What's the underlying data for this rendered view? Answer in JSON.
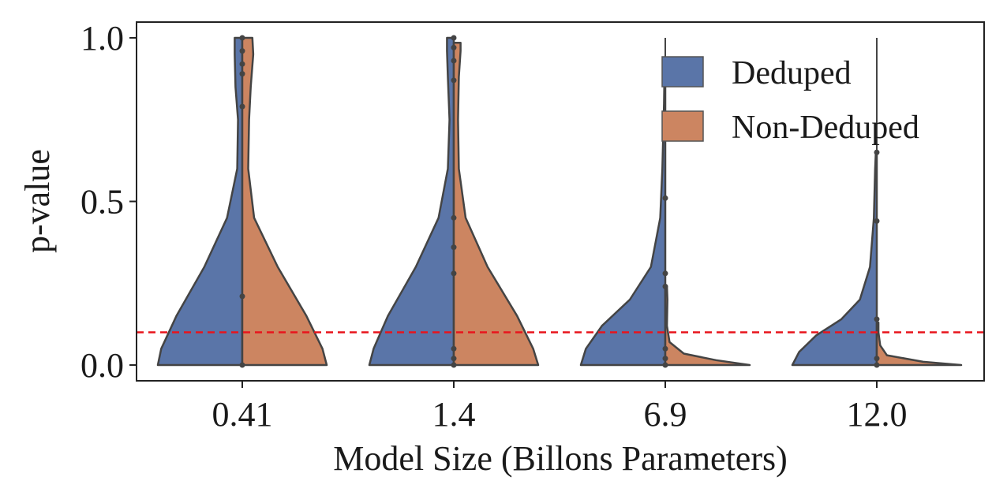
{
  "chart_data": {
    "type": "violin",
    "xlabel": "Model Size (Billons Parameters)",
    "ylabel": "p-value",
    "categories": [
      "0.41",
      "1.4",
      "6.9",
      "12.0"
    ],
    "yticks": [
      "0.0",
      "0.5",
      "1.0"
    ],
    "ylim": [
      -0.05,
      1.05
    ],
    "grid": false,
    "legend_position": "top-right",
    "threshold": {
      "value": 0.1,
      "color": "#e8141c",
      "style": "dashed"
    },
    "series": [
      {
        "name": "Deduped",
        "color": "#5a75a8",
        "side": "left",
        "distributions": [
          {
            "profile": [
              [
                0.0,
                1.0
              ],
              [
                0.05,
                0.96
              ],
              [
                0.15,
                0.78
              ],
              [
                0.3,
                0.45
              ],
              [
                0.45,
                0.18
              ],
              [
                0.6,
                0.06
              ],
              [
                0.75,
                0.05
              ],
              [
                0.85,
                0.08
              ],
              [
                0.95,
                0.09
              ],
              [
                1.0,
                0.09
              ]
            ],
            "points": [
              0.0,
              0.21,
              0.79,
              0.89,
              0.92,
              0.96,
              1.0
            ]
          },
          {
            "profile": [
              [
                0.0,
                1.0
              ],
              [
                0.05,
                0.95
              ],
              [
                0.15,
                0.78
              ],
              [
                0.3,
                0.45
              ],
              [
                0.45,
                0.18
              ],
              [
                0.6,
                0.07
              ],
              [
                0.75,
                0.05
              ],
              [
                0.88,
                0.07
              ],
              [
                0.96,
                0.08
              ],
              [
                1.0,
                0.08
              ]
            ],
            "points": [
              0.0,
              0.02,
              0.05,
              0.28,
              0.36,
              0.45,
              0.87,
              0.93,
              0.97,
              1.0
            ]
          },
          {
            "profile": [
              [
                0.0,
                1.0
              ],
              [
                0.05,
                0.94
              ],
              [
                0.12,
                0.75
              ],
              [
                0.2,
                0.42
              ],
              [
                0.3,
                0.17
              ],
              [
                0.45,
                0.06
              ],
              [
                0.6,
                0.035
              ],
              [
                0.8,
                0.015
              ],
              [
                0.88,
                0.01
              ]
            ],
            "points": [
              0.0,
              0.02,
              0.05,
              0.24,
              0.28,
              0.51
            ]
          },
          {
            "profile": [
              [
                0.0,
                1.0
              ],
              [
                0.04,
                0.92
              ],
              [
                0.09,
                0.72
              ],
              [
                0.14,
                0.42
              ],
              [
                0.2,
                0.2
              ],
              [
                0.3,
                0.08
              ],
              [
                0.45,
                0.035
              ],
              [
                0.6,
                0.02
              ],
              [
                0.655,
                0.01
              ]
            ],
            "points": [
              0.0,
              0.02,
              0.14,
              0.44,
              0.65
            ]
          }
        ]
      },
      {
        "name": "Non-Deduped",
        "color": "#cc8561",
        "side": "right",
        "distributions": [
          {
            "profile": [
              [
                0.0,
                1.0
              ],
              [
                0.05,
                0.95
              ],
              [
                0.15,
                0.76
              ],
              [
                0.3,
                0.42
              ],
              [
                0.45,
                0.14
              ],
              [
                0.6,
                0.07
              ],
              [
                0.75,
                0.08
              ],
              [
                0.85,
                0.1
              ],
              [
                0.95,
                0.13
              ],
              [
                1.0,
                0.12
              ]
            ],
            "points": []
          },
          {
            "profile": [
              [
                0.0,
                1.0
              ],
              [
                0.05,
                0.94
              ],
              [
                0.15,
                0.75
              ],
              [
                0.3,
                0.4
              ],
              [
                0.45,
                0.14
              ],
              [
                0.6,
                0.06
              ],
              [
                0.75,
                0.05
              ],
              [
                0.88,
                0.06
              ],
              [
                0.96,
                0.08
              ],
              [
                0.985,
                0.08
              ]
            ],
            "points": []
          },
          {
            "profile": [
              [
                0.0,
                1.0
              ],
              [
                0.015,
                0.6
              ],
              [
                0.035,
                0.22
              ],
              [
                0.07,
                0.05
              ],
              [
                0.12,
                0.02
              ],
              [
                0.2,
                0.025
              ],
              [
                0.24,
                0.02
              ]
            ],
            "points": []
          },
          {
            "profile": [
              [
                0.0,
                1.0
              ],
              [
                0.01,
                0.55
              ],
              [
                0.03,
                0.12
              ],
              [
                0.06,
                0.04
              ],
              [
                0.1,
                0.02
              ],
              [
                0.13,
                0.02
              ]
            ],
            "points": []
          }
        ]
      }
    ]
  }
}
